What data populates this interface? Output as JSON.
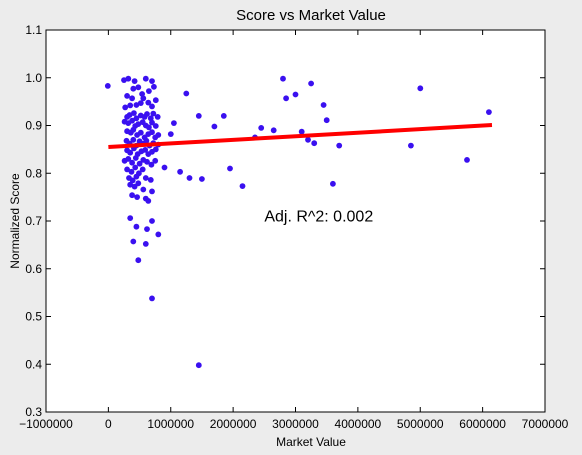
{
  "chart_data": {
    "type": "scatter",
    "title": "Score vs Market Value",
    "xlabel": "Market Value",
    "ylabel": "Normalized Score",
    "xlim": [
      -1000000,
      7000000
    ],
    "ylim": [
      0.3,
      1.1
    ],
    "xticks": [
      -1000000,
      0,
      1000000,
      2000000,
      3000000,
      4000000,
      5000000,
      6000000,
      7000000
    ],
    "xtick_labels": [
      "−1000000",
      "0",
      "1000000",
      "2000000",
      "3000000",
      "4000000",
      "5000000",
      "6000000",
      "7000000"
    ],
    "yticks": [
      0.3,
      0.4,
      0.5,
      0.6,
      0.7,
      0.8,
      0.9,
      1.0,
      1.1
    ],
    "ytick_labels": [
      "0.3",
      "0.4",
      "0.5",
      "0.6",
      "0.7",
      "0.8",
      "0.9",
      "1.0",
      "1.1"
    ],
    "grid": false,
    "point_color": "#3a10f0",
    "line_color": "#ff0000",
    "annotation": "Adj. R^2: 0.002",
    "regression_line": {
      "x": [
        0,
        6150000
      ],
      "y": [
        0.855,
        0.901
      ]
    },
    "points": [
      [
        -10000,
        0.983
      ],
      [
        250000,
        0.995
      ],
      [
        320000,
        0.998
      ],
      [
        420000,
        0.993
      ],
      [
        600000,
        0.998
      ],
      [
        700000,
        0.993
      ],
      [
        400000,
        0.977
      ],
      [
        480000,
        0.98
      ],
      [
        540000,
        0.966
      ],
      [
        730000,
        0.981
      ],
      [
        650000,
        0.972
      ],
      [
        300000,
        0.962
      ],
      [
        380000,
        0.957
      ],
      [
        560000,
        0.957
      ],
      [
        640000,
        0.948
      ],
      [
        760000,
        0.953
      ],
      [
        270000,
        0.938
      ],
      [
        350000,
        0.942
      ],
      [
        450000,
        0.943
      ],
      [
        520000,
        0.947
      ],
      [
        700000,
        0.94
      ],
      [
        300000,
        0.918
      ],
      [
        340000,
        0.922
      ],
      [
        410000,
        0.926
      ],
      [
        450000,
        0.915
      ],
      [
        520000,
        0.921
      ],
      [
        580000,
        0.918
      ],
      [
        620000,
        0.924
      ],
      [
        680000,
        0.915
      ],
      [
        720000,
        0.925
      ],
      [
        790000,
        0.918
      ],
      [
        260000,
        0.908
      ],
      [
        320000,
        0.905
      ],
      [
        380000,
        0.91
      ],
      [
        430000,
        0.899
      ],
      [
        480000,
        0.903
      ],
      [
        550000,
        0.907
      ],
      [
        600000,
        0.9
      ],
      [
        650000,
        0.896
      ],
      [
        700000,
        0.906
      ],
      [
        760000,
        0.899
      ],
      [
        300000,
        0.888
      ],
      [
        360000,
        0.885
      ],
      [
        400000,
        0.891
      ],
      [
        460000,
        0.88
      ],
      [
        520000,
        0.885
      ],
      [
        580000,
        0.875
      ],
      [
        640000,
        0.882
      ],
      [
        700000,
        0.886
      ],
      [
        750000,
        0.875
      ],
      [
        800000,
        0.88
      ],
      [
        290000,
        0.868
      ],
      [
        340000,
        0.862
      ],
      [
        400000,
        0.87
      ],
      [
        450000,
        0.858
      ],
      [
        500000,
        0.867
      ],
      [
        560000,
        0.862
      ],
      [
        610000,
        0.868
      ],
      [
        660000,
        0.858
      ],
      [
        720000,
        0.863
      ],
      [
        800000,
        0.86
      ],
      [
        300000,
        0.848
      ],
      [
        350000,
        0.843
      ],
      [
        410000,
        0.852
      ],
      [
        470000,
        0.84
      ],
      [
        530000,
        0.846
      ],
      [
        590000,
        0.849
      ],
      [
        640000,
        0.84
      ],
      [
        700000,
        0.845
      ],
      [
        760000,
        0.85
      ],
      [
        260000,
        0.826
      ],
      [
        320000,
        0.83
      ],
      [
        380000,
        0.822
      ],
      [
        440000,
        0.832
      ],
      [
        500000,
        0.82
      ],
      [
        560000,
        0.828
      ],
      [
        620000,
        0.824
      ],
      [
        690000,
        0.818
      ],
      [
        750000,
        0.826
      ],
      [
        300000,
        0.808
      ],
      [
        370000,
        0.803
      ],
      [
        430000,
        0.812
      ],
      [
        490000,
        0.8
      ],
      [
        550000,
        0.808
      ],
      [
        330000,
        0.79
      ],
      [
        390000,
        0.785
      ],
      [
        450000,
        0.793
      ],
      [
        600000,
        0.79
      ],
      [
        680000,
        0.786
      ],
      [
        350000,
        0.776
      ],
      [
        420000,
        0.772
      ],
      [
        480000,
        0.779
      ],
      [
        560000,
        0.766
      ],
      [
        700000,
        0.762
      ],
      [
        380000,
        0.754
      ],
      [
        460000,
        0.75
      ],
      [
        600000,
        0.747
      ],
      [
        640000,
        0.742
      ],
      [
        350000,
        0.706
      ],
      [
        700000,
        0.7
      ],
      [
        450000,
        0.688
      ],
      [
        620000,
        0.683
      ],
      [
        800000,
        0.672
      ],
      [
        400000,
        0.657
      ],
      [
        600000,
        0.652
      ],
      [
        480000,
        0.618
      ],
      [
        700000,
        0.538
      ],
      [
        1450000,
        0.398
      ],
      [
        900000,
        0.812
      ],
      [
        1000000,
        0.882
      ],
      [
        1050000,
        0.905
      ],
      [
        1150000,
        0.803
      ],
      [
        1250000,
        0.967
      ],
      [
        1300000,
        0.79
      ],
      [
        1450000,
        0.92
      ],
      [
        1500000,
        0.788
      ],
      [
        1700000,
        0.898
      ],
      [
        1850000,
        0.92
      ],
      [
        1950000,
        0.81
      ],
      [
        2150000,
        0.773
      ],
      [
        2350000,
        0.875
      ],
      [
        2450000,
        0.895
      ],
      [
        2650000,
        0.89
      ],
      [
        2800000,
        0.998
      ],
      [
        2850000,
        0.957
      ],
      [
        3000000,
        0.965
      ],
      [
        3100000,
        0.887
      ],
      [
        3200000,
        0.87
      ],
      [
        3250000,
        0.988
      ],
      [
        3300000,
        0.863
      ],
      [
        3450000,
        0.943
      ],
      [
        3500000,
        0.911
      ],
      [
        3600000,
        0.778
      ],
      [
        3700000,
        0.858
      ],
      [
        4850000,
        0.858
      ],
      [
        5000000,
        0.978
      ],
      [
        5750000,
        0.828
      ],
      [
        6100000,
        0.928
      ]
    ]
  }
}
